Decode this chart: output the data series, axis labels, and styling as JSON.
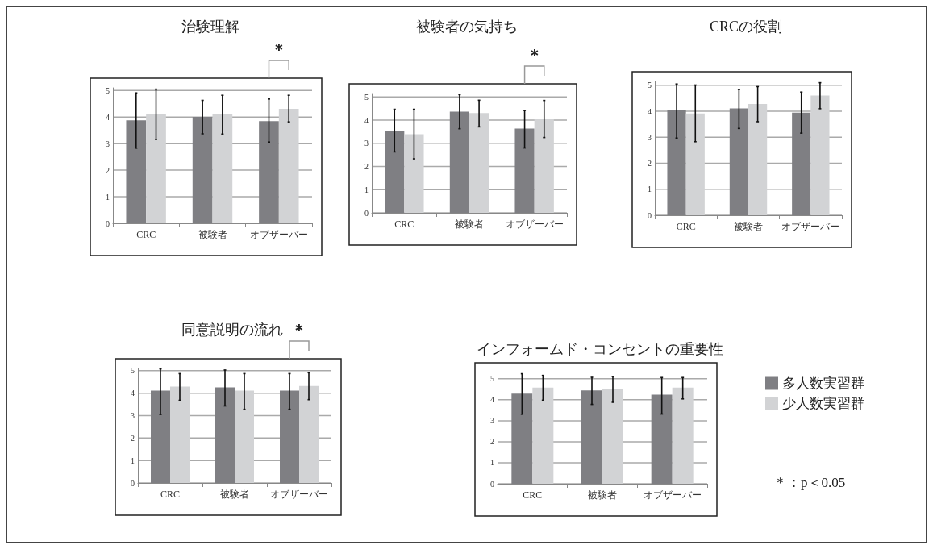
{
  "chart_data": [
    {
      "type": "bar",
      "title": "治験理解",
      "categories": [
        "CRC",
        "被験者",
        "オブザーバー"
      ],
      "ylim": [
        0,
        5.1
      ],
      "yticks": [
        0,
        1,
        2,
        3,
        4,
        5
      ],
      "grid": "y",
      "legend": false,
      "annotations": [
        "＊"
      ],
      "series": [
        {
          "color": "#7f7f83",
          "values": [
            3.88,
            4.01,
            3.85
          ],
          "errors": [
            [
              2.83,
              4.91
            ],
            [
              3.37,
              4.63
            ],
            [
              3.06,
              4.68
            ]
          ]
        },
        {
          "color": "#d2d3d5",
          "values": [
            4.1,
            4.1,
            4.31
          ],
          "errors": [
            [
              3.16,
              5.05
            ],
            [
              3.36,
              4.82
            ],
            [
              3.82,
              4.82
            ]
          ]
        }
      ]
    },
    {
      "type": "bar",
      "title": "被験者の気持ち",
      "categories": [
        "CRC",
        "被験者",
        "オブザーバー"
      ],
      "ylim": [
        0,
        5.15
      ],
      "yticks": [
        0,
        1,
        2,
        3,
        4,
        5
      ],
      "grid": "y",
      "legend": false,
      "annotations": [
        "＊"
      ],
      "series": [
        {
          "color": "#7f7f83",
          "values": [
            3.55,
            4.37,
            3.64
          ],
          "errors": [
            [
              2.63,
              4.47
            ],
            [
              3.63,
              5.1
            ],
            [
              2.8,
              4.42
            ]
          ]
        },
        {
          "color": "#d2d3d5",
          "values": [
            3.39,
            4.31,
            4.05
          ],
          "errors": [
            [
              2.33,
              4.47
            ],
            [
              3.71,
              4.86
            ],
            [
              3.25,
              4.85
            ]
          ]
        }
      ]
    },
    {
      "type": "bar",
      "title": "CRCの役割",
      "categories": [
        "CRC",
        "被験者",
        "オブザーバー"
      ],
      "ylim": [
        0,
        5.15
      ],
      "yticks": [
        0,
        1,
        2,
        3,
        4,
        5
      ],
      "grid": "y",
      "legend": false,
      "series": [
        {
          "color": "#7f7f83",
          "values": [
            4.03,
            4.11,
            3.95
          ],
          "errors": [
            [
              2.97,
              5.05
            ],
            [
              3.34,
              4.84
            ],
            [
              3.16,
              4.74
            ]
          ]
        },
        {
          "color": "#d2d3d5",
          "values": [
            3.92,
            4.28,
            4.61
          ],
          "errors": [
            [
              2.83,
              5.01
            ],
            [
              3.6,
              4.95
            ],
            [
              4.1,
              5.1
            ]
          ]
        }
      ]
    },
    {
      "type": "bar",
      "title": "同意説明の流れ",
      "categories": [
        "CRC",
        "被験者",
        "オブザーバー"
      ],
      "ylim": [
        0,
        5.1
      ],
      "yticks": [
        0,
        1,
        2,
        3,
        4,
        5
      ],
      "grid": "y",
      "legend": false,
      "annotations": [
        "＊"
      ],
      "series": [
        {
          "color": "#7f7f83",
          "values": [
            4.11,
            4.26,
            4.11
          ],
          "errors": [
            [
              3.05,
              5.08
            ],
            [
              3.43,
              5.03
            ],
            [
              3.28,
              4.87
            ]
          ]
        },
        {
          "color": "#d2d3d5",
          "values": [
            4.29,
            4.11,
            4.32
          ],
          "errors": [
            [
              3.68,
              4.87
            ],
            [
              3.28,
              4.87
            ],
            [
              3.71,
              4.91
            ]
          ]
        }
      ]
    },
    {
      "type": "bar",
      "title": "インフォームド・コンセントの重要性",
      "categories": [
        "CRC",
        "被験者",
        "オブザーバー"
      ],
      "ylim": [
        0,
        5.3
      ],
      "yticks": [
        0,
        1,
        2,
        3,
        4,
        5
      ],
      "grid": "y",
      "legend": "right",
      "annotations": [
        "＊：p＜0.05"
      ],
      "series": [
        {
          "name": "多人数実習群",
          "color": "#7f7f83",
          "values": [
            4.29,
            4.45,
            4.24
          ],
          "errors": [
            [
              3.31,
              5.24
            ],
            [
              3.78,
              5.07
            ],
            [
              3.32,
              5.06
            ]
          ]
        },
        {
          "name": "少人数実習群",
          "color": "#d2d3d5",
          "values": [
            4.58,
            4.51,
            4.58
          ],
          "errors": [
            [
              3.98,
              5.16
            ],
            [
              3.88,
              5.11
            ],
            [
              4.04,
              5.06
            ]
          ]
        }
      ]
    }
  ]
}
